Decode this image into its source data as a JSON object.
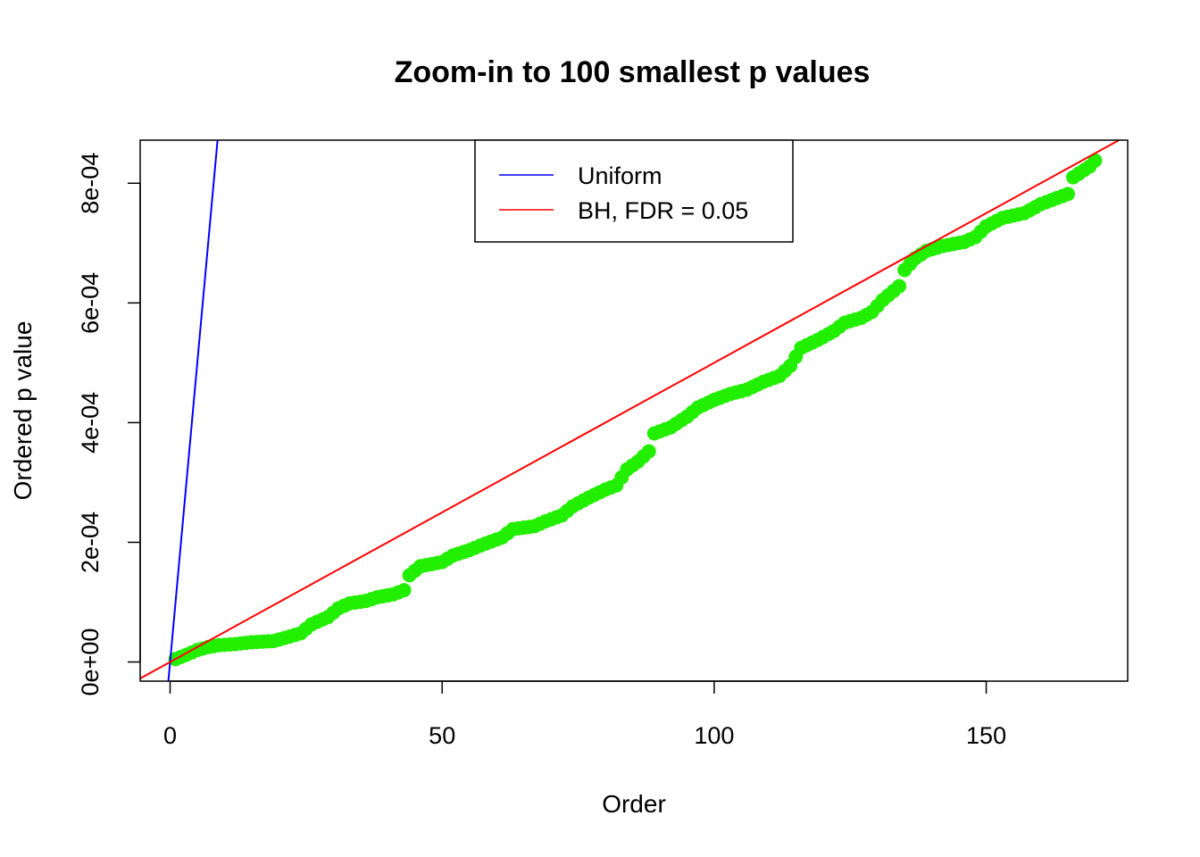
{
  "chart_data": {
    "type": "scatter",
    "title": "Zoom-in to 100 smallest p values",
    "xlabel": "Order",
    "ylabel": "Ordered p value",
    "xlim": [
      -5.5,
      176
    ],
    "ylim": [
      -3.2e-05,
      0.000872
    ],
    "x_ticks": [
      0,
      50,
      100,
      150
    ],
    "x_tick_labels": [
      "0",
      "50",
      "100",
      "150"
    ],
    "y_ticks": [
      0,
      0.0002,
      0.0004,
      0.0006,
      0.0008
    ],
    "y_tick_labels": [
      "0e+00",
      "2e-04",
      "4e-04",
      "6e-04",
      "8e-04"
    ],
    "grid": false,
    "legend": {
      "placement": "top-center",
      "entries": [
        {
          "label": "Uniform",
          "color": "#0000ff"
        },
        {
          "label": "BH, FDR = 0.05",
          "color": "#ff0000"
        }
      ]
    },
    "reference_lines": [
      {
        "name": "Uniform",
        "slope": 0.0001,
        "intercept": 0,
        "color": "#0000ff"
      },
      {
        "name": "BH, FDR = 0.05",
        "slope": 5e-06,
        "intercept": 0,
        "color": "#ff0000"
      }
    ],
    "points_color": "#22ee00",
    "anchors": [
      [
        1,
        5e-06
      ],
      [
        3,
        1.2e-05
      ],
      [
        5,
        2e-05
      ],
      [
        7,
        2.5e-05
      ],
      [
        9,
        2.8e-05
      ],
      [
        12,
        3e-05
      ],
      [
        15,
        3.3e-05
      ],
      [
        19,
        3.5e-05
      ],
      [
        21,
        4e-05
      ],
      [
        24,
        4.8e-05
      ],
      [
        26,
        6.3e-05
      ],
      [
        29,
        7.5e-05
      ],
      [
        31,
        9e-05
      ],
      [
        33,
        9.8e-05
      ],
      [
        36,
        0.000102
      ],
      [
        38,
        0.000108
      ],
      [
        41,
        0.000113
      ],
      [
        43,
        0.00012
      ],
      [
        44,
        0.000145
      ],
      [
        46,
        0.00016
      ],
      [
        50,
        0.000167
      ],
      [
        52,
        0.000178
      ],
      [
        55,
        0.000187
      ],
      [
        58,
        0.000198
      ],
      [
        61,
        0.000208
      ],
      [
        63,
        0.000222
      ],
      [
        67,
        0.000227
      ],
      [
        69,
        0.000235
      ],
      [
        72,
        0.000245
      ],
      [
        74,
        0.00026
      ],
      [
        77,
        0.000275
      ],
      [
        80,
        0.000288
      ],
      [
        82,
        0.000295
      ],
      [
        84,
        0.000322
      ],
      [
        86,
        0.000335
      ],
      [
        88,
        0.000352
      ],
      [
        89,
        0.000382
      ],
      [
        92,
        0.000392
      ],
      [
        95,
        0.00041
      ],
      [
        97,
        0.000425
      ],
      [
        100,
        0.000438
      ],
      [
        103,
        0.000448
      ],
      [
        106,
        0.000455
      ],
      [
        109,
        0.000468
      ],
      [
        112,
        0.000478
      ],
      [
        114,
        0.000495
      ],
      [
        116,
        0.000525
      ],
      [
        119,
        0.000538
      ],
      [
        122,
        0.000553
      ],
      [
        124,
        0.000567
      ],
      [
        127,
        0.000575
      ],
      [
        129,
        0.000585
      ],
      [
        131,
        0.000605
      ],
      [
        134,
        0.000628
      ],
      [
        135,
        0.000655
      ],
      [
        137,
        0.000675
      ],
      [
        139,
        0.000687
      ],
      [
        142,
        0.000695
      ],
      [
        146,
        0.000702
      ],
      [
        148,
        0.00071
      ],
      [
        150,
        0.000728
      ],
      [
        153,
        0.000742
      ],
      [
        157,
        0.00075
      ],
      [
        160,
        0.000765
      ],
      [
        165,
        0.000782
      ],
      [
        166,
        0.00081
      ],
      [
        169,
        0.000828
      ],
      [
        170,
        0.000838
      ]
    ]
  }
}
